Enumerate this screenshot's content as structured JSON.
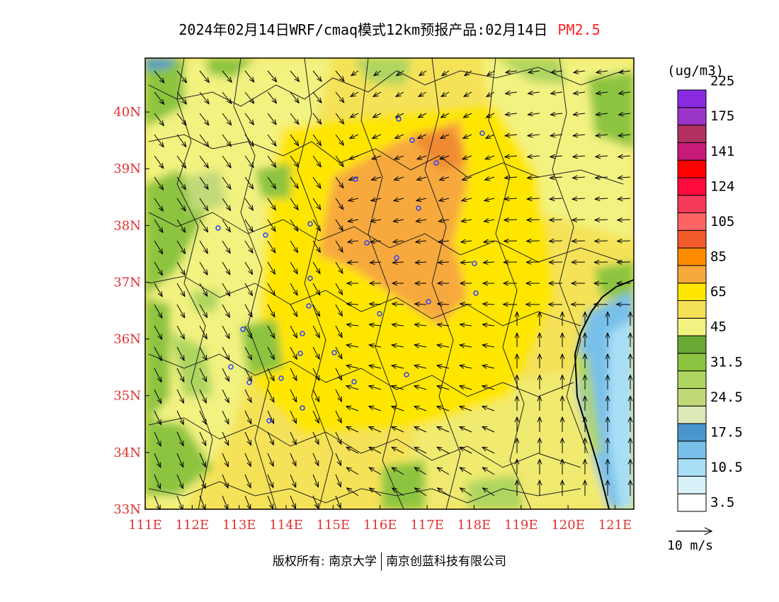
{
  "title": {
    "main": "2024年02月14日WRF/cmaq模式12km预报产品:02月14日",
    "species": "PM2.5"
  },
  "axes": {
    "x_ticks": [
      "111E",
      "112E",
      "113E",
      "114E",
      "115E",
      "116E",
      "117E",
      "118E",
      "119E",
      "120E",
      "121E"
    ],
    "y_ticks": [
      "33N",
      "34N",
      "35N",
      "36N",
      "37N",
      "38N",
      "39N",
      "40N"
    ],
    "lon_range": [
      111,
      121.4
    ],
    "lat_range": [
      33,
      40.95
    ]
  },
  "legend": {
    "unit": "(ug/m3)",
    "colors": [
      "#ffffff",
      "#d9f1f8",
      "#a8dff5",
      "#78c0ea",
      "#4a96cc",
      "#dde9b8",
      "#c2d97a",
      "#aed560",
      "#8cc43f",
      "#69a832",
      "#f2f280",
      "#f5e258",
      "#ffe600",
      "#f7a93c",
      "#ff8c00",
      "#f25c2b",
      "#ff6464",
      "#f53a5a",
      "#ff0a3c",
      "#ff0000",
      "#c71a7a",
      "#b03060",
      "#9b34c8",
      "#8a2be2"
    ],
    "labels": [
      "3.5",
      "10.5",
      "17.5",
      "24.5",
      "31.5",
      "45",
      "65",
      "85",
      "105",
      "124",
      "141",
      "175",
      "225"
    ]
  },
  "wind_reference": {
    "label": "10 m/s"
  },
  "copyright": {
    "prefix": "版权所有:",
    "org1": "南京大学",
    "org2": "南京创蓝科技有限公司"
  },
  "colors": {
    "tick_label": "#e03030",
    "species_label": "#ff2020",
    "station_marker": "#2a3cff"
  }
}
